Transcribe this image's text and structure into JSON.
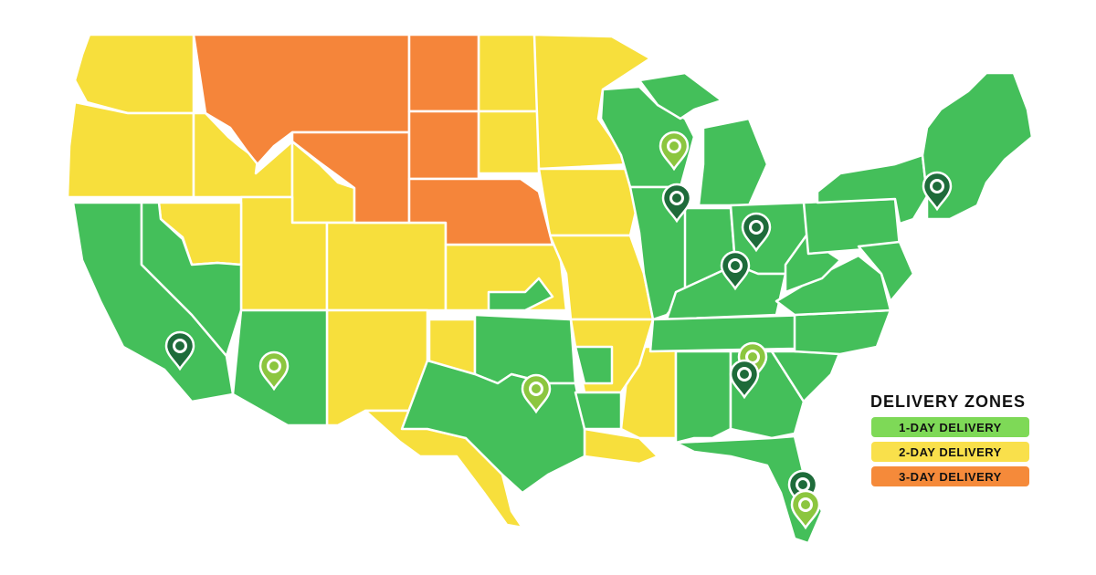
{
  "legend": {
    "title": "DELIVERY ZONES",
    "items": [
      {
        "label": "1-DAY DELIVERY",
        "color": "#7ED957",
        "zone": "1-day"
      },
      {
        "label": "2-DAY DELIVERY",
        "color": "#F9E04B",
        "zone": "2-day"
      },
      {
        "label": "3-DAY DELIVERY",
        "color": "#F58A3A",
        "zone": "3-day"
      }
    ]
  },
  "colors": {
    "one_day_fill": "#44BF5A",
    "two_day_fill": "#F7DF3C",
    "three_day_fill": "#F5853A",
    "border": "#FFFFFF",
    "marker_dark": "#1E6B3A",
    "marker_light": "#8CC63F"
  },
  "zones": {
    "one_day": [
      "CA",
      "NV",
      "AZ",
      "TX",
      "OK",
      "KS",
      "AR",
      "LA",
      "WI",
      "MI",
      "IL",
      "IN",
      "OH",
      "KY",
      "TN",
      "MS",
      "AL",
      "GA",
      "FL",
      "SC",
      "NC",
      "VA",
      "WV",
      "PA",
      "NY",
      "VT",
      "NH",
      "ME",
      "MA",
      "CT",
      "RI",
      "NJ",
      "DE",
      "MD"
    ],
    "two_day": [
      "WA",
      "OR",
      "ID",
      "UT",
      "CO",
      "NM",
      "ND",
      "SD",
      "MN",
      "IA",
      "MO",
      "NE",
      "TX",
      "LA",
      "MS",
      "WY"
    ],
    "three_day": [
      "MT",
      "WY",
      "ND",
      "SD",
      "NE"
    ]
  },
  "markers": [
    {
      "name": "Wisconsin",
      "style": "light"
    },
    {
      "name": "Illinois",
      "style": "dark"
    },
    {
      "name": "Ohio",
      "style": "dark"
    },
    {
      "name": "Kentucky",
      "style": "dark"
    },
    {
      "name": "New York",
      "style": "dark"
    },
    {
      "name": "California",
      "style": "dark"
    },
    {
      "name": "Arizona",
      "style": "light"
    },
    {
      "name": "Texas",
      "style": "light"
    },
    {
      "name": "Georgia",
      "style": "light"
    },
    {
      "name": "Georgia",
      "style": "dark"
    },
    {
      "name": "Florida",
      "style": "dark"
    },
    {
      "name": "Florida",
      "style": "light"
    }
  ]
}
